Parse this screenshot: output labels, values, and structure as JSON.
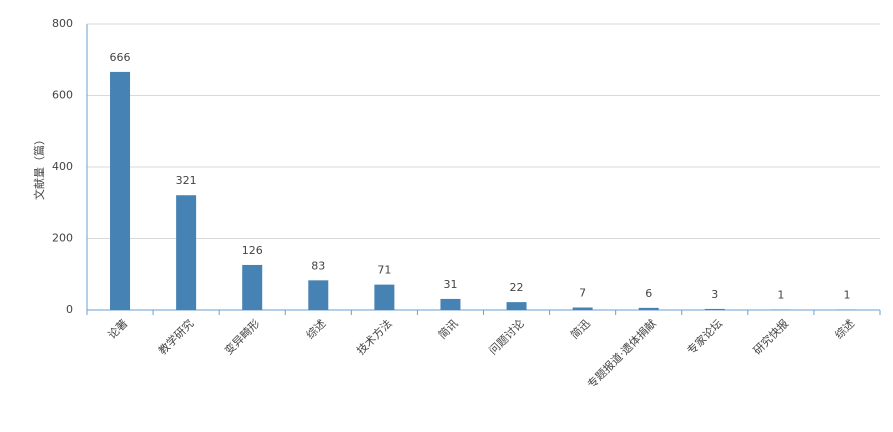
{
  "chart_data": {
    "type": "bar",
    "y_label": "文献量（篇）",
    "categories": [
      "论著",
      "教学研究",
      "变异畸形",
      "综述",
      "技术方法",
      "简讯",
      "问题讨论",
      "简迅",
      "专题报道·遗体捐献",
      "专家论坛",
      "研究快报",
      "综述"
    ],
    "values": [
      666,
      321,
      126,
      83,
      71,
      31,
      22,
      7,
      6,
      3,
      1,
      1
    ],
    "color": "#4682b4",
    "ylim": [
      0,
      800
    ],
    "yticks": [
      0,
      200,
      400,
      600,
      800
    ],
    "grid": true
  }
}
